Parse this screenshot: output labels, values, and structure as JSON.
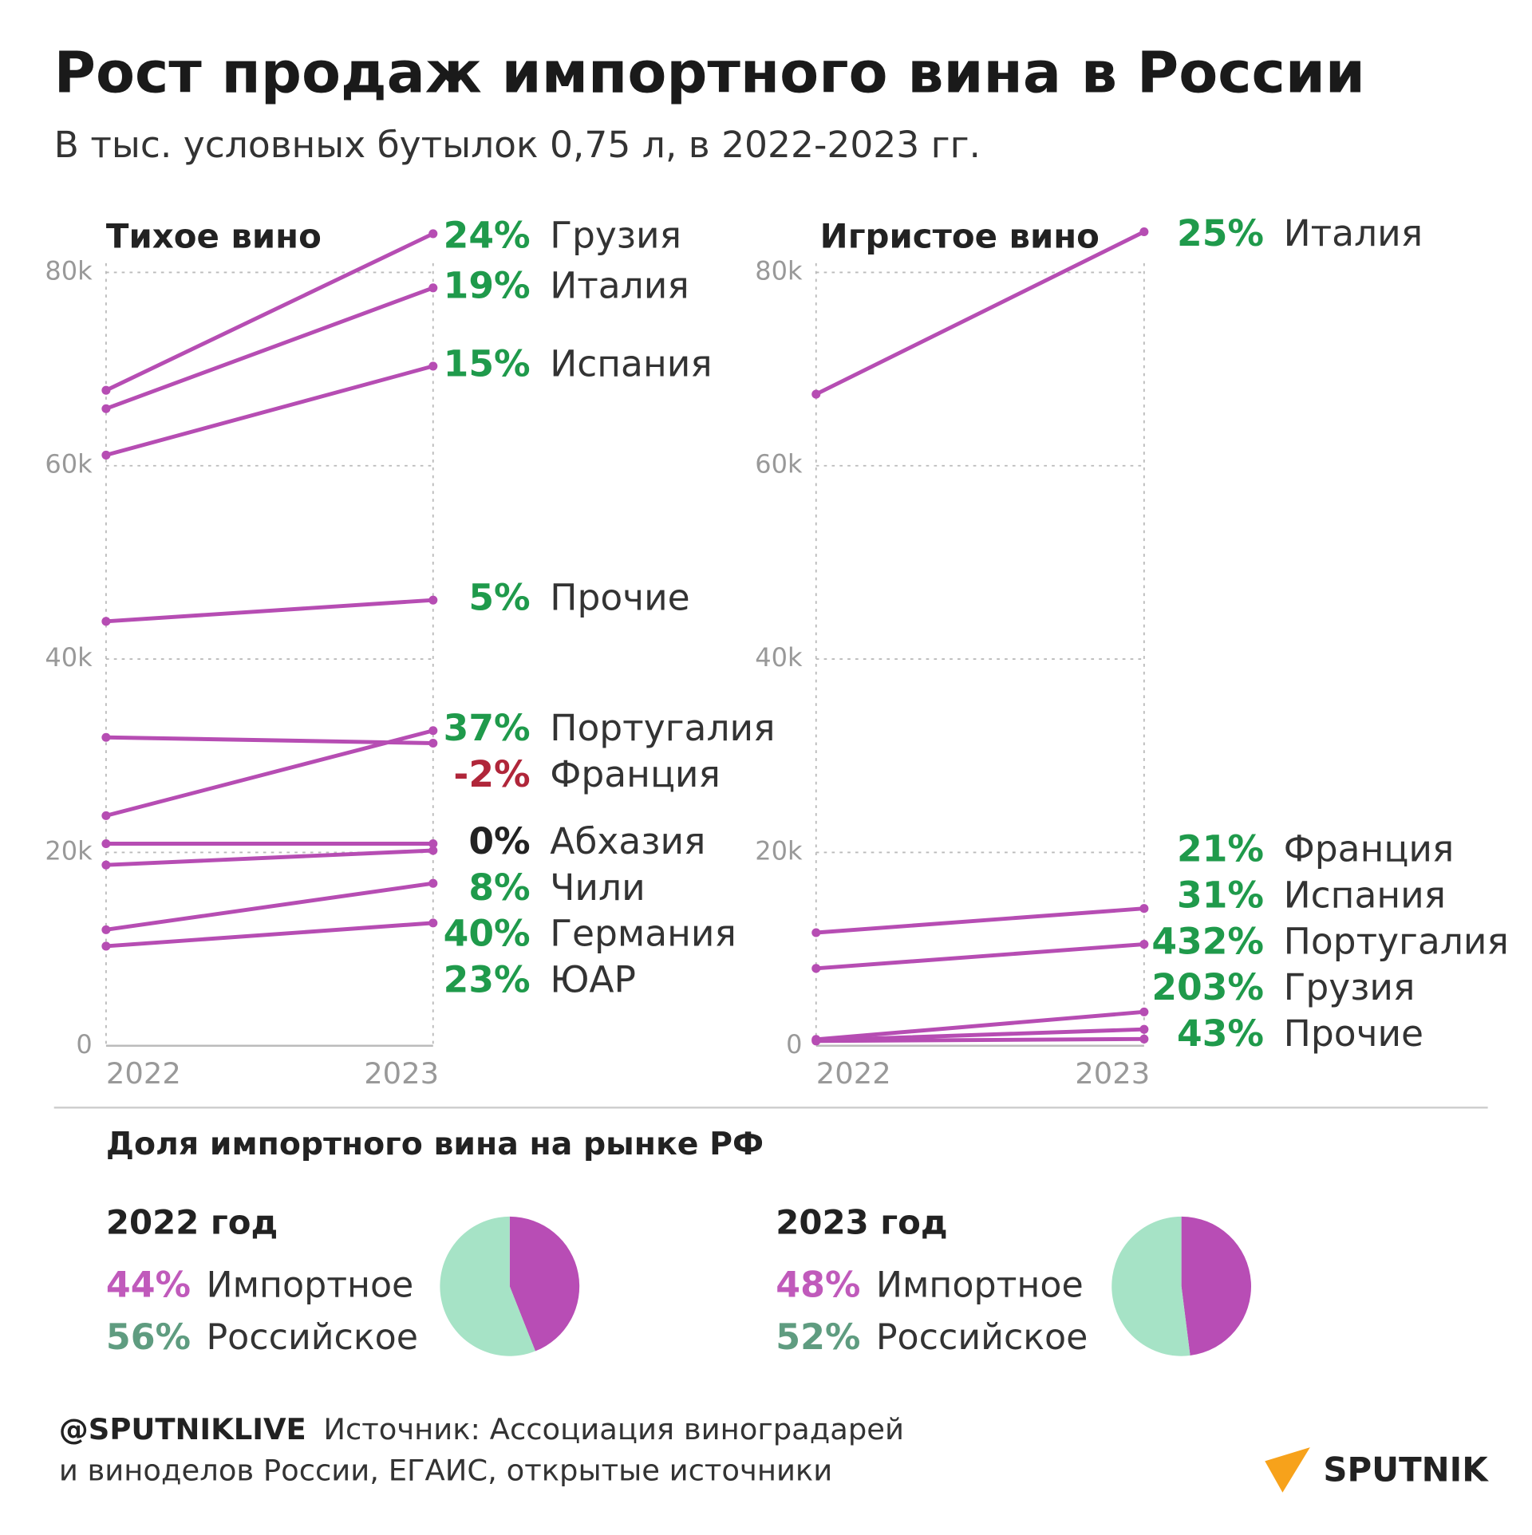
{
  "title": "Рост продаж импортного вина в России",
  "subtitle": "В тыс. условных бутылок 0,75 л, в 2022-2023 гг.",
  "chart_data": [
    {
      "type": "slope",
      "title": "Тихое вино",
      "categories": [
        "2022",
        "2023"
      ],
      "ylim": [
        0,
        84000
      ],
      "yticks": [
        0,
        {
          "value": 20000,
          "label": "20k"
        },
        {
          "value": 40000,
          "label": "40k"
        },
        {
          "value": 60000,
          "label": "60k"
        },
        {
          "value": 80000,
          "label": "80k"
        }
      ],
      "grid": true,
      "color": "#b64db3",
      "series": [
        {
          "name": "Грузия",
          "values": [
            67800,
            84000
          ],
          "change": "24%",
          "change_color": "#1f9a4b"
        },
        {
          "name": "Италия",
          "values": [
            65900,
            78400
          ],
          "change": "19%",
          "change_color": "#1f9a4b"
        },
        {
          "name": "Испания",
          "values": [
            61100,
            70300
          ],
          "change": "15%",
          "change_color": "#1f9a4b"
        },
        {
          "name": "Прочие",
          "values": [
            43900,
            46100
          ],
          "change": "5%",
          "change_color": "#1f9a4b"
        },
        {
          "name": "Португалия",
          "values": [
            23800,
            32600
          ],
          "change": "37%",
          "change_color": "#1f9a4b"
        },
        {
          "name": "Франция",
          "values": [
            31900,
            31300
          ],
          "change": "-2%",
          "change_color": "#b0263a"
        },
        {
          "name": "Абхазия",
          "values": [
            20900,
            20900
          ],
          "change": "0%",
          "change_color": "#222222"
        },
        {
          "name": "Чили",
          "values": [
            18700,
            20200
          ],
          "change": "8%",
          "change_color": "#1f9a4b"
        },
        {
          "name": "Германия",
          "values": [
            12000,
            16800
          ],
          "change": "40%",
          "change_color": "#1f9a4b"
        },
        {
          "name": "ЮАР",
          "values": [
            10300,
            12700
          ],
          "change": "23%",
          "change_color": "#1f9a4b"
        }
      ]
    },
    {
      "type": "slope",
      "title": "Игристое вино",
      "categories": [
        "2022",
        "2023"
      ],
      "ylim": [
        0,
        84000
      ],
      "yticks": [
        0,
        {
          "value": 20000,
          "label": "20k"
        },
        {
          "value": 40000,
          "label": "40k"
        },
        {
          "value": 60000,
          "label": "60k"
        },
        {
          "value": 80000,
          "label": "80k"
        }
      ],
      "grid": true,
      "color": "#b64db3",
      "series": [
        {
          "name": "Италия",
          "values": [
            67400,
            84200
          ],
          "change": "25%",
          "change_color": "#1f9a4b"
        },
        {
          "name": "Франция",
          "values": [
            11700,
            14200
          ],
          "change": "21%",
          "change_color": "#1f9a4b"
        },
        {
          "name": "Испания",
          "values": [
            8000,
            10500
          ],
          "change": "31%",
          "change_color": "#1f9a4b"
        },
        {
          "name": "Португалия",
          "values": [
            658,
            3500
          ],
          "change": "432%",
          "change_color": "#1f9a4b"
        },
        {
          "name": "Грузия",
          "values": [
            561,
            1700
          ],
          "change": "203%",
          "change_color": "#1f9a4b"
        },
        {
          "name": "Прочие",
          "values": [
            490,
            700
          ],
          "change": "43%",
          "change_color": "#1f9a4b"
        }
      ]
    },
    {
      "type": "pie",
      "title": "2022 год",
      "categories": [
        "Импортное",
        "Российское"
      ],
      "values": [
        44,
        56
      ],
      "value_labels": [
        "44%",
        "56%"
      ],
      "colors": [
        "#b84db5",
        "#a6e3c6"
      ],
      "label_colors": [
        "#c05abb",
        "#5f9c80"
      ]
    },
    {
      "type": "pie",
      "title": "2023 год",
      "categories": [
        "Импортное",
        "Российское"
      ],
      "values": [
        48,
        52
      ],
      "value_labels": [
        "48%",
        "52%"
      ],
      "colors": [
        "#b84db5",
        "#a6e3c6"
      ],
      "label_colors": [
        "#c05abb",
        "#5f9c80"
      ]
    }
  ],
  "share_title": "Доля импортного вина на рынке РФ",
  "footer": {
    "handle": "@SPUTNIKLIVE",
    "source": [
      "Источник: Ассоциация виноградарей",
      "и виноделов России, ЕГАИС, открытые источники"
    ]
  },
  "logo": "SPUTNIK"
}
